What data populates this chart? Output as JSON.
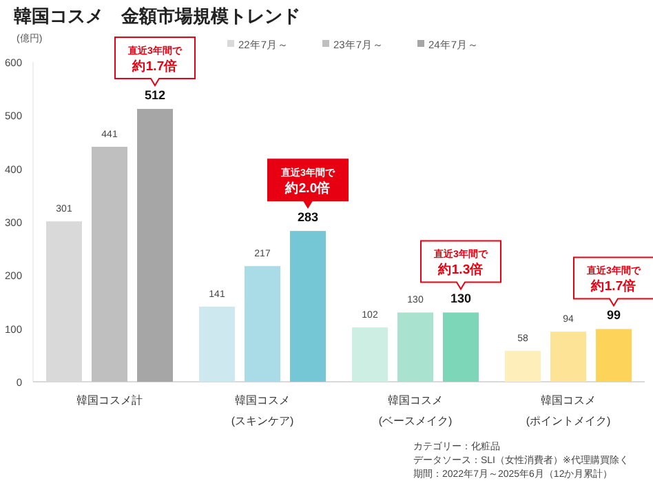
{
  "chart_data": {
    "type": "bar",
    "title": "韓国コスメ　金額市場規模トレンド",
    "ylabel": "(億円)",
    "categories": [
      "韓国コスメ計",
      "韓国コスメ\n(スキンケア)",
      "韓国コスメ\n(ベースメイク)",
      "韓国コスメ\n(ポイントメイク)"
    ],
    "series": [
      {
        "name": "22年7月～",
        "color": "#d9d9d9",
        "colors": [
          "#d9d9d9",
          "#cde9ef",
          "#cdeee3",
          "#fdeeba"
        ],
        "values": [
          301,
          141,
          102,
          58
        ]
      },
      {
        "name": "23年7月～",
        "color": "#bfbfbf",
        "colors": [
          "#bfbfbf",
          "#a9dce6",
          "#a9e3d0",
          "#fde396"
        ],
        "values": [
          441,
          217,
          130,
          94
        ]
      },
      {
        "name": "24年7月～",
        "color": "#a6a6a6",
        "colors": [
          "#a6a6a6",
          "#76c7d6",
          "#7dd6b8",
          "#fdd35a"
        ],
        "values": [
          512,
          283,
          130,
          99
        ]
      }
    ],
    "ylim": [
      0,
      600
    ],
    "yticks": [
      0,
      100,
      200,
      300,
      400,
      500,
      600
    ],
    "data_labels": true,
    "legend": "top",
    "grid": false,
    "annotations": [
      "直近3年間で",
      "約1.7倍",
      "直近3年間で",
      "約2.0倍",
      "直近3年間で",
      "約1.3倍",
      "直近3年間で",
      "約1.7倍",
      "カテゴリー：化粧品",
      "データソース：SLI（女性消費者）※代理購買除く",
      "期間：2022年7月～2025年6月（12か月累計）"
    ]
  }
}
